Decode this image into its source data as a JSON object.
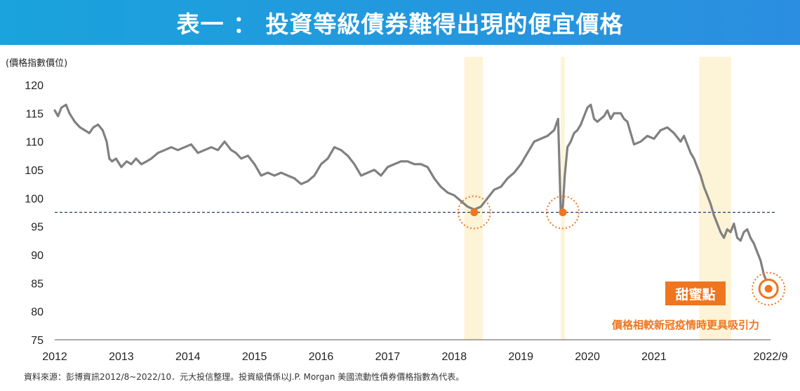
{
  "title": "表一 ： 投資等級債券難得出現的便宜價格",
  "unit_label": "(價格指數價位)",
  "source_note": "資料來源：彭博資訊2012/8~2022/10．元大投信整理。投資級債係以J.P. Morgan 美國流動性債券價格指數為代表。",
  "annotations": {
    "sweet_spot_label": "甜蜜點",
    "sweet_spot_note": "價格相較新冠疫情時更具吸引力"
  },
  "colors": {
    "title_bg": "#1aa3dc",
    "line": "#808080",
    "highlight_band": "#fdf3d6",
    "reference_line": "#1f3a6e",
    "marker": "#f0751f"
  },
  "chart_data": {
    "type": "line",
    "title": "",
    "ylabel": "(價格指數價位)",
    "xlabel": "",
    "ylim": [
      75,
      120
    ],
    "y_ticks": [
      120,
      115,
      110,
      105,
      100,
      95,
      90,
      85,
      80,
      75
    ],
    "x_range": [
      2012.0,
      2022.75
    ],
    "x_ticks": [
      {
        "value": 2012,
        "label": "2012"
      },
      {
        "value": 2013,
        "label": "2013"
      },
      {
        "value": 2014,
        "label": "2014"
      },
      {
        "value": 2015,
        "label": "2015"
      },
      {
        "value": 2016,
        "label": "2016"
      },
      {
        "value": 2017,
        "label": "2017"
      },
      {
        "value": 2018,
        "label": "2018"
      },
      {
        "value": 2019,
        "label": "2019"
      },
      {
        "value": 2020,
        "label": "2020"
      },
      {
        "value": 2021,
        "label": "2021"
      },
      {
        "value": 2022.75,
        "label": "2022/9"
      }
    ],
    "reference_line": 97.5,
    "highlight_bands": [
      [
        2018.15,
        2018.43
      ],
      [
        2019.6,
        2019.66
      ],
      [
        2021.68,
        2022.16
      ]
    ],
    "markers": [
      {
        "x": 2018.3,
        "y": 97.5
      },
      {
        "x": 2019.63,
        "y": 97.5
      },
      {
        "x": 2022.72,
        "y": 84.0
      }
    ],
    "series": [
      {
        "x": [
          2012.0,
          2012.05,
          2012.1,
          2012.17,
          2012.22,
          2012.3,
          2012.38,
          2012.45,
          2012.52,
          2012.58,
          2012.65,
          2012.72,
          2012.78,
          2012.82,
          2012.86,
          2012.92,
          2013.0,
          2013.08,
          2013.15,
          2013.22,
          2013.3,
          2013.38,
          2013.45,
          2013.55,
          2013.65,
          2013.75,
          2013.85,
          2013.95,
          2014.05,
          2014.15,
          2014.25,
          2014.35,
          2014.45,
          2014.55,
          2014.65,
          2014.72,
          2014.8,
          2014.9,
          2015.0,
          2015.1,
          2015.2,
          2015.3,
          2015.4,
          2015.5,
          2015.6,
          2015.7,
          2015.8,
          2015.9,
          2016.0,
          2016.1,
          2016.2,
          2016.3,
          2016.4,
          2016.5,
          2016.6,
          2016.7,
          2016.8,
          2016.9,
          2017.0,
          2017.1,
          2017.2,
          2017.3,
          2017.4,
          2017.5,
          2017.6,
          2017.7,
          2017.8,
          2017.9,
          2018.0,
          2018.1,
          2018.2,
          2018.3,
          2018.4,
          2018.5,
          2018.6,
          2018.7,
          2018.8,
          2018.9,
          2019.0,
          2019.1,
          2019.2,
          2019.3,
          2019.4,
          2019.5,
          2019.56,
          2019.6,
          2019.63,
          2019.66,
          2019.7,
          2019.75,
          2019.8,
          2019.85,
          2019.9,
          2019.95,
          2020.0,
          2020.05,
          2020.1,
          2020.15,
          2020.2,
          2020.25,
          2020.3,
          2020.35,
          2020.4,
          2020.5,
          2020.55,
          2020.6,
          2020.7,
          2020.8,
          2020.9,
          2021.0,
          2021.1,
          2021.2,
          2021.3,
          2021.4,
          2021.45,
          2021.5,
          2021.55,
          2021.6,
          2021.65,
          2021.7,
          2021.75,
          2021.8,
          2021.85,
          2021.9,
          2021.95,
          2022.0,
          2022.05,
          2022.1,
          2022.15,
          2022.2,
          2022.25,
          2022.3,
          2022.35,
          2022.4,
          2022.45,
          2022.5,
          2022.55,
          2022.6,
          2022.65,
          2022.7,
          2022.72
        ],
        "values": [
          115.5,
          114.5,
          116.0,
          116.5,
          115.0,
          113.5,
          112.5,
          112.0,
          111.5,
          112.5,
          113.0,
          112.0,
          110.0,
          107.0,
          106.5,
          107.0,
          105.5,
          106.5,
          106.0,
          107.0,
          106.0,
          106.5,
          107.0,
          108.0,
          108.5,
          109.0,
          108.5,
          109.0,
          109.5,
          108.0,
          108.5,
          109.0,
          108.5,
          110.0,
          108.5,
          108.0,
          107.0,
          107.5,
          106.0,
          104.0,
          104.5,
          104.0,
          104.5,
          104.0,
          103.5,
          102.5,
          103.0,
          104.0,
          106.0,
          107.0,
          109.0,
          108.5,
          107.5,
          106.0,
          104.0,
          104.5,
          105.0,
          104.0,
          105.5,
          106.0,
          106.5,
          106.5,
          106.0,
          106.0,
          105.5,
          103.5,
          102.0,
          101.0,
          100.5,
          99.5,
          98.5,
          98.0,
          98.5,
          100.0,
          101.5,
          102.0,
          103.5,
          104.5,
          106.0,
          108.0,
          110.0,
          110.5,
          111.0,
          112.0,
          114.0,
          97.5,
          98.5,
          104.0,
          109.0,
          110.0,
          111.5,
          112.0,
          113.0,
          114.5,
          116.0,
          116.5,
          114.0,
          113.5,
          114.0,
          114.5,
          115.5,
          114.0,
          115.0,
          115.0,
          114.0,
          113.5,
          109.5,
          110.0,
          111.0,
          110.5,
          112.0,
          112.5,
          111.5,
          110.0,
          111.0,
          109.5,
          108.0,
          107.0,
          105.5,
          104.0,
          102.0,
          100.5,
          99.0,
          97.0,
          95.5,
          94.0,
          93.0,
          94.5,
          94.0,
          95.5,
          93.0,
          92.5,
          94.0,
          94.5,
          93.0,
          92.0,
          90.5,
          89.0,
          86.5,
          85.0,
          84.0
        ]
      }
    ]
  }
}
